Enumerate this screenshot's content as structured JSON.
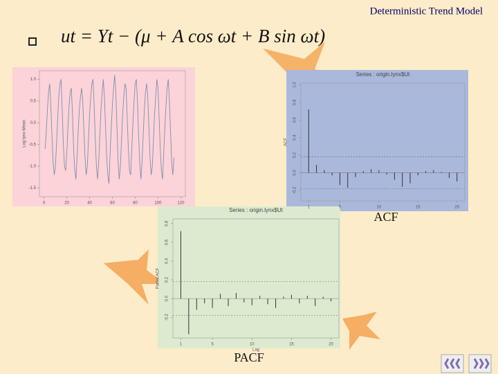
{
  "slide": {
    "title": "Deterministic Trend Model",
    "formula": "ut = Yt − (μ + A cos ωt + B sin ωt)",
    "captions": [
      "ACF",
      "PACF"
    ]
  },
  "chart_data": [
    {
      "type": "line",
      "ylabel": "Log lynx-Mean",
      "color": "#7f8fb0",
      "x": [
        1,
        2,
        3,
        4,
        5,
        6,
        7,
        8,
        9,
        10,
        11,
        12,
        13,
        14,
        15,
        16,
        17,
        18,
        19,
        20,
        21,
        22,
        23,
        24,
        25,
        26,
        27,
        28,
        29,
        30,
        31,
        32,
        33,
        34,
        35,
        36,
        37,
        38,
        39,
        40,
        41,
        42,
        43,
        44,
        45,
        46,
        47,
        48,
        49,
        50,
        51,
        52,
        53,
        54,
        55,
        56,
        57,
        58,
        59,
        60,
        61,
        62,
        63,
        64,
        65,
        66,
        67,
        68,
        69,
        70,
        71,
        72,
        73,
        74,
        75,
        76,
        77,
        78,
        79,
        80,
        81,
        82,
        83,
        84,
        85,
        86,
        87,
        88,
        89,
        90,
        91,
        92,
        93,
        94,
        95,
        96,
        97,
        98,
        99,
        100,
        101,
        102,
        103,
        104,
        105,
        106,
        107,
        108,
        109,
        110,
        111,
        112,
        113,
        114
      ],
      "values": [
        -0.6,
        -0.2,
        0.3,
        0.7,
        0.9,
        0.4,
        -0.3,
        -0.9,
        -1.2,
        -1.0,
        -0.5,
        0.1,
        0.6,
        0.9,
        1.0,
        0.3,
        -0.5,
        -1.0,
        -1.1,
        -0.7,
        -0.1,
        0.4,
        0.7,
        0.8,
        0.2,
        -0.6,
        -1.1,
        -1.3,
        -0.8,
        -0.2,
        0.3,
        0.6,
        0.8,
        0.5,
        -0.2,
        -0.8,
        -1.2,
        -1.0,
        -0.4,
        0.2,
        0.6,
        0.9,
        1.0,
        0.4,
        -0.4,
        -1.0,
        -1.3,
        -0.9,
        -0.3,
        0.3,
        0.7,
        1.0,
        0.6,
        -0.1,
        -0.8,
        -1.2,
        -1.4,
        -0.7,
        -0.1,
        0.4,
        0.8,
        1.1,
        0.7,
        -0.1,
        -0.9,
        -1.3,
        -1.0,
        -0.4,
        0.2,
        0.6,
        0.9,
        0.8,
        0.1,
        -0.6,
        -1.1,
        -1.2,
        -0.6,
        0.0,
        0.5,
        0.9,
        1.0,
        0.5,
        -0.3,
        -0.9,
        -1.3,
        -0.9,
        -0.3,
        0.3,
        0.7,
        0.9,
        0.6,
        -0.1,
        -0.8,
        -1.2,
        -1.0,
        -0.4,
        0.2,
        0.6,
        1.0,
        0.8,
        0.1,
        -0.6,
        -1.1,
        -1.3,
        -0.7,
        -0.1,
        0.4,
        0.8,
        1.0,
        0.5,
        -0.2,
        -0.9,
        -1.2,
        -0.8
      ],
      "xlim": [
        -4,
        124
      ],
      "ylim": [
        -1.7,
        1.2
      ],
      "xticks": [
        0,
        20,
        40,
        60,
        80,
        100,
        120
      ],
      "yticks": [
        {
          "value": 1,
          "label": "1.0"
        },
        {
          "value": 0.5,
          "label": "0.5"
        },
        {
          "value": 0,
          "label": "0.0"
        },
        {
          "value": -0.5,
          "label": "-0.5"
        },
        {
          "value": -1,
          "label": "-1.0"
        },
        {
          "value": -1.5,
          "label": "-1.5"
        }
      ]
    },
    {
      "type": "acf",
      "title": "Series : origin.lynx$Ut",
      "ylabel": "ACF",
      "color": "#333333",
      "x": [
        1,
        2,
        3,
        4,
        5,
        6,
        7,
        8,
        9,
        10,
        11,
        12,
        13,
        14,
        15,
        16,
        17,
        18,
        19,
        20
      ],
      "values": [
        0.72,
        0.09,
        0.03,
        -0.03,
        -0.14,
        -0.17,
        -0.05,
        0.02,
        0.04,
        0.03,
        -0.02,
        -0.08,
        -0.16,
        -0.12,
        -0.03,
        0.02,
        0.03,
        0.01,
        -0.06,
        -0.1
      ],
      "conf_limit": 0.18,
      "xlim": [
        0,
        21
      ],
      "ylim": [
        -0.32,
        1.02
      ],
      "xticks": [
        1,
        5,
        10,
        15,
        20
      ],
      "yticks": [
        {
          "value": -0.2,
          "label": "-0.2"
        },
        {
          "value": 0,
          "label": "0.0"
        },
        {
          "value": 0.2,
          "label": "0.2"
        },
        {
          "value": 0.4,
          "label": "0.4"
        },
        {
          "value": 0.6,
          "label": "0.6"
        },
        {
          "value": 0.8,
          "label": "0.8"
        },
        {
          "value": 1,
          "label": "1.0"
        }
      ]
    },
    {
      "type": "acf",
      "title": "Series : origin.lynx$Ut",
      "ylabel": "Partial ACF",
      "xlabel": "Lag",
      "color": "#333333",
      "x": [
        1,
        2,
        3,
        4,
        5,
        6,
        7,
        8,
        9,
        10,
        11,
        12,
        13,
        14,
        15,
        16,
        17,
        18,
        19,
        20
      ],
      "values": [
        0.72,
        -0.38,
        -0.12,
        -0.05,
        -0.1,
        0.05,
        -0.08,
        0.06,
        -0.04,
        -0.07,
        0.03,
        -0.06,
        -0.1,
        0.02,
        0.04,
        -0.05,
        0.03,
        -0.08,
        0.02,
        -0.03
      ],
      "conf_limit": 0.18,
      "xlim": [
        0,
        21
      ],
      "ylim": [
        -0.42,
        0.85
      ],
      "xticks": [
        1,
        5,
        10,
        15,
        20
      ],
      "yticks": [
        {
          "value": -0.2,
          "label": "-0.2"
        },
        {
          "value": 0,
          "label": "0.0"
        },
        {
          "value": 0.2,
          "label": "0.2"
        },
        {
          "value": 0.4,
          "label": "0.4"
        },
        {
          "value": 0.6,
          "label": "0.6"
        },
        {
          "value": 0.8,
          "label": "0.8"
        }
      ]
    }
  ]
}
